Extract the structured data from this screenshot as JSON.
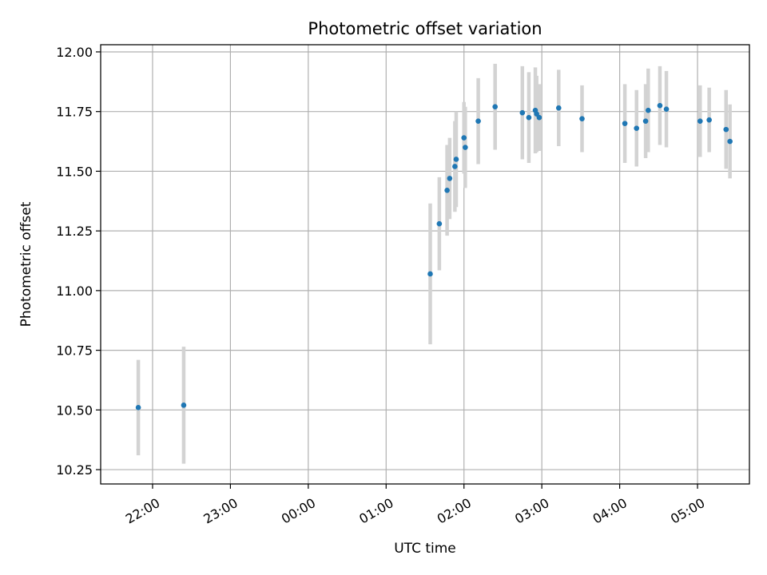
{
  "chart_data": {
    "type": "scatter",
    "title": "Photometric offset variation",
    "xlabel": "UTC time",
    "ylabel": "Photometric offset",
    "x_unit": "minutes after 00:00 UTC",
    "xlim": [
      -160,
      340
    ],
    "ylim": [
      10.19,
      12.03
    ],
    "x_ticks": [
      -120,
      -60,
      0,
      60,
      120,
      180,
      240,
      300
    ],
    "x_tick_labels": [
      "22:00",
      "23:00",
      "00:00",
      "01:00",
      "02:00",
      "03:00",
      "04:00",
      "05:00"
    ],
    "y_ticks": [
      10.25,
      10.5,
      10.75,
      11.0,
      11.25,
      11.5,
      11.75,
      12.0
    ],
    "y_tick_labels": [
      "10.25",
      "10.50",
      "10.75",
      "11.00",
      "11.25",
      "11.50",
      "11.75",
      "12.00"
    ],
    "grid": true,
    "colors": {
      "point": "#1f77b4",
      "errorbar": "#d3d3d3",
      "grid": "#b0b0b0"
    },
    "points": [
      {
        "t": "21:49",
        "x": -131,
        "y": 10.51,
        "yerr": 0.2
      },
      {
        "t": "22:24",
        "x": -96,
        "y": 10.52,
        "yerr": 0.245
      },
      {
        "t": "01:34",
        "x": 94,
        "y": 11.07,
        "yerr": 0.295
      },
      {
        "t": "01:41",
        "x": 101,
        "y": 11.28,
        "yerr": 0.195
      },
      {
        "t": "01:47",
        "x": 107,
        "y": 11.42,
        "yerr": 0.19
      },
      {
        "t": "01:49",
        "x": 109,
        "y": 11.47,
        "yerr": 0.17
      },
      {
        "t": "01:53",
        "x": 113,
        "y": 11.52,
        "yerr": 0.19
      },
      {
        "t": "01:54",
        "x": 114,
        "y": 11.55,
        "yerr": 0.2
      },
      {
        "t": "02:00",
        "x": 120,
        "y": 11.64,
        "yerr": 0.15
      },
      {
        "t": "02:01",
        "x": 121,
        "y": 11.6,
        "yerr": 0.17
      },
      {
        "t": "02:11",
        "x": 131,
        "y": 11.71,
        "yerr": 0.18
      },
      {
        "t": "02:24",
        "x": 144,
        "y": 11.77,
        "yerr": 0.18
      },
      {
        "t": "02:45",
        "x": 165,
        "y": 11.745,
        "yerr": 0.195
      },
      {
        "t": "02:50",
        "x": 170,
        "y": 11.725,
        "yerr": 0.19
      },
      {
        "t": "02:55",
        "x": 175,
        "y": 11.755,
        "yerr": 0.18
      },
      {
        "t": "02:56",
        "x": 176,
        "y": 11.74,
        "yerr": 0.16
      },
      {
        "t": "02:58",
        "x": 178,
        "y": 11.725,
        "yerr": 0.14
      },
      {
        "t": "03:13",
        "x": 193,
        "y": 11.765,
        "yerr": 0.16
      },
      {
        "t": "03:31",
        "x": 211,
        "y": 11.72,
        "yerr": 0.14
      },
      {
        "t": "04:04",
        "x": 244,
        "y": 11.7,
        "yerr": 0.165
      },
      {
        "t": "04:13",
        "x": 253,
        "y": 11.68,
        "yerr": 0.16
      },
      {
        "t": "04:20",
        "x": 260,
        "y": 11.71,
        "yerr": 0.155
      },
      {
        "t": "04:22",
        "x": 262,
        "y": 11.755,
        "yerr": 0.175
      },
      {
        "t": "04:31",
        "x": 271,
        "y": 11.775,
        "yerr": 0.165
      },
      {
        "t": "04:36",
        "x": 276,
        "y": 11.76,
        "yerr": 0.16
      },
      {
        "t": "05:02",
        "x": 302,
        "y": 11.71,
        "yerr": 0.15
      },
      {
        "t": "05:09",
        "x": 309,
        "y": 11.715,
        "yerr": 0.135
      },
      {
        "t": "05:22",
        "x": 322,
        "y": 11.675,
        "yerr": 0.165
      },
      {
        "t": "05:25",
        "x": 325,
        "y": 11.625,
        "yerr": 0.155
      }
    ]
  }
}
